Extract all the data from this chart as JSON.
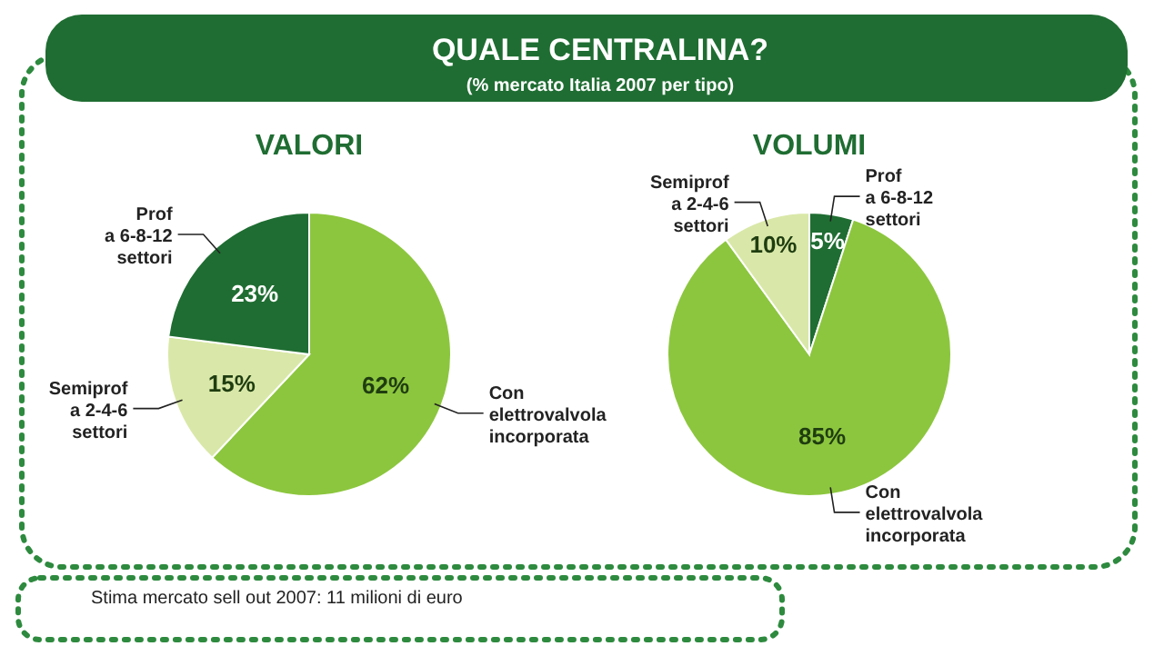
{
  "chart_data": [
    {
      "type": "other",
      "title": "QUALE CENTRALINA?",
      "subtitle": "(% mercato Italia 2007 per tipo)",
      "annotations": [
        "Stima mercato sell out 2007: 11 milioni di euro"
      ]
    },
    {
      "type": "pie",
      "title": "VALORI",
      "categories": [
        "Con\nelettrovalvola\nincorporata",
        "Semiprof\na 2-4-6\nsettori",
        "Prof\na 6-8-12\nsettori"
      ],
      "values": [
        62,
        15,
        23
      ],
      "value_labels": [
        "62%",
        "15%",
        "23%"
      ],
      "colors": [
        "#8cc63e",
        "#d9e8a8",
        "#1f6d32"
      ]
    },
    {
      "type": "pie",
      "title": "VOLUMI",
      "categories": [
        "Prof\na 6-8-12\nsettori",
        "Con\nelettrovalvola\nincorporata",
        "Semiprof\na 2-4-6\nsettori"
      ],
      "values": [
        5,
        85,
        10
      ],
      "value_labels": [
        "5%",
        "85%",
        "10%"
      ],
      "colors": [
        "#1f6d32",
        "#8cc63e",
        "#d9e8a8"
      ]
    }
  ]
}
